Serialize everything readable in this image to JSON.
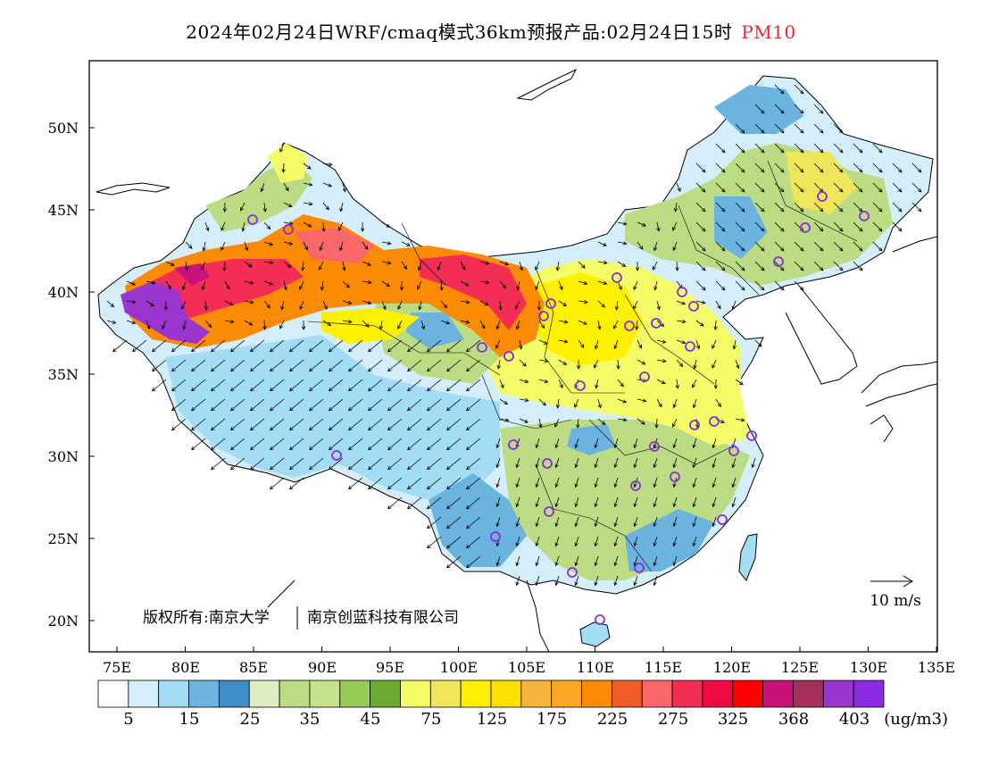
{
  "title": {
    "main": "2024年02月24日WRF/cmaq模式36km预报产品:02月24日15时",
    "pollutant": "PM10"
  },
  "axes": {
    "lat_labels": [
      "50N",
      "45N",
      "40N",
      "35N",
      "30N",
      "25N",
      "20N"
    ],
    "lon_labels": [
      "75E",
      "80E",
      "85E",
      "90E",
      "95E",
      "100E",
      "105E",
      "110E",
      "115E",
      "120E",
      "125E",
      "130E",
      "135E"
    ],
    "lon_range": [
      73,
      135
    ],
    "lat_range": [
      18,
      54
    ]
  },
  "copyright": {
    "owner1": "版权所有:南京大学",
    "owner2": "南京创蓝科技有限公司"
  },
  "wind_scale": {
    "label": "10 m/s"
  },
  "colorbar": {
    "unit": "(ug/m3)",
    "tick_labels": [
      "5",
      "15",
      "25",
      "35",
      "45",
      "75",
      "125",
      "175",
      "225",
      "275",
      "325",
      "368",
      "403"
    ],
    "colors": [
      "#ffffff",
      "#d4eefb",
      "#a3dcf5",
      "#6cb4e0",
      "#3f8ec6",
      "#deedc2",
      "#bcdc84",
      "#c7e38a",
      "#94cc55",
      "#6aab2f",
      "#f4fc68",
      "#f0e65c",
      "#fdf000",
      "#fce000",
      "#f7b43b",
      "#fba624",
      "#fb8a05",
      "#f05c28",
      "#f9676a",
      "#f42d54",
      "#f00a44",
      "#fe0000",
      "#c8117a",
      "#a52f5a",
      "#9a35cf",
      "#8a2be2"
    ]
  },
  "map_colors": {
    "low_blue": "#a3dcf5",
    "mid_blue": "#6cb4e0",
    "green": "#bcdc84",
    "yellow": "#fdf000",
    "orange": "#fb8a05",
    "red": "#f42d54",
    "purple": "#9a35cf",
    "station_ring": "#8a2be2"
  }
}
